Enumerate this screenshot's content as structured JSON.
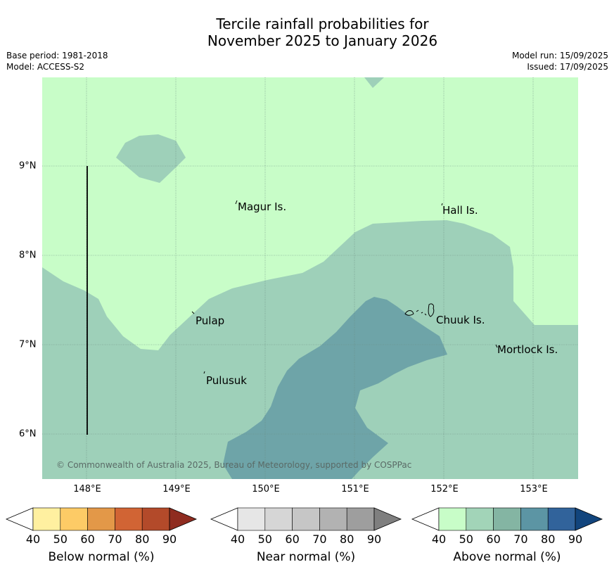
{
  "title_line1": "Tercile rainfall probabilities for",
  "title_line2": "November 2025 to January 2026",
  "meta_left": {
    "base_period": "Base period: 1981-2018",
    "model": "Model: ACCESS-S2"
  },
  "meta_right": {
    "model_run": "Model run: 15/09/2025",
    "issued": "Issued: 17/09/2025"
  },
  "credit": "© Commonwealth of Australia 2025, Bureau of Meteorology, supported by COSPPac",
  "x_ticks": [
    "148°E",
    "149°E",
    "150°E",
    "151°E",
    "152°E",
    "153°E"
  ],
  "y_ticks": [
    "9°N",
    "8°N",
    "7°N",
    "6°N"
  ],
  "places": [
    "Magur Is.",
    "Hall Is.",
    "Pulap",
    "Chuuk Is.",
    "Mortlock Is.",
    "Pulusuk"
  ],
  "colorbars": [
    {
      "label": "Below normal (%)",
      "ticks": [
        "40",
        "50",
        "60",
        "70",
        "80",
        "90"
      ],
      "colors": [
        "#ffffff",
        "#fff0a0",
        "#fdcb66",
        "#e39848",
        "#d16434",
        "#b34a2a",
        "#8f2c20"
      ]
    },
    {
      "label": "Near normal (%)",
      "ticks": [
        "40",
        "50",
        "60",
        "70",
        "80",
        "90"
      ],
      "colors": [
        "#ffffff",
        "#e6e6e6",
        "#d6d6d6",
        "#c6c6c6",
        "#b2b2b2",
        "#9e9e9e",
        "#7f7f7f"
      ]
    },
    {
      "label": "Above normal (%)",
      "ticks": [
        "40",
        "50",
        "60",
        "70",
        "80",
        "90"
      ],
      "colors": [
        "#ffffff",
        "#c8fdc8",
        "#a2d4b8",
        "#84b5a3",
        "#5c95a4",
        "#31639b",
        "#12457d"
      ]
    }
  ],
  "fill_colors": {
    "band_40_50": "#c8fdc8",
    "band_50_60": "#9ed0b9",
    "band_60_70": "#6ea4a8",
    "land": "#000000",
    "grid": "#6a8a80"
  }
}
